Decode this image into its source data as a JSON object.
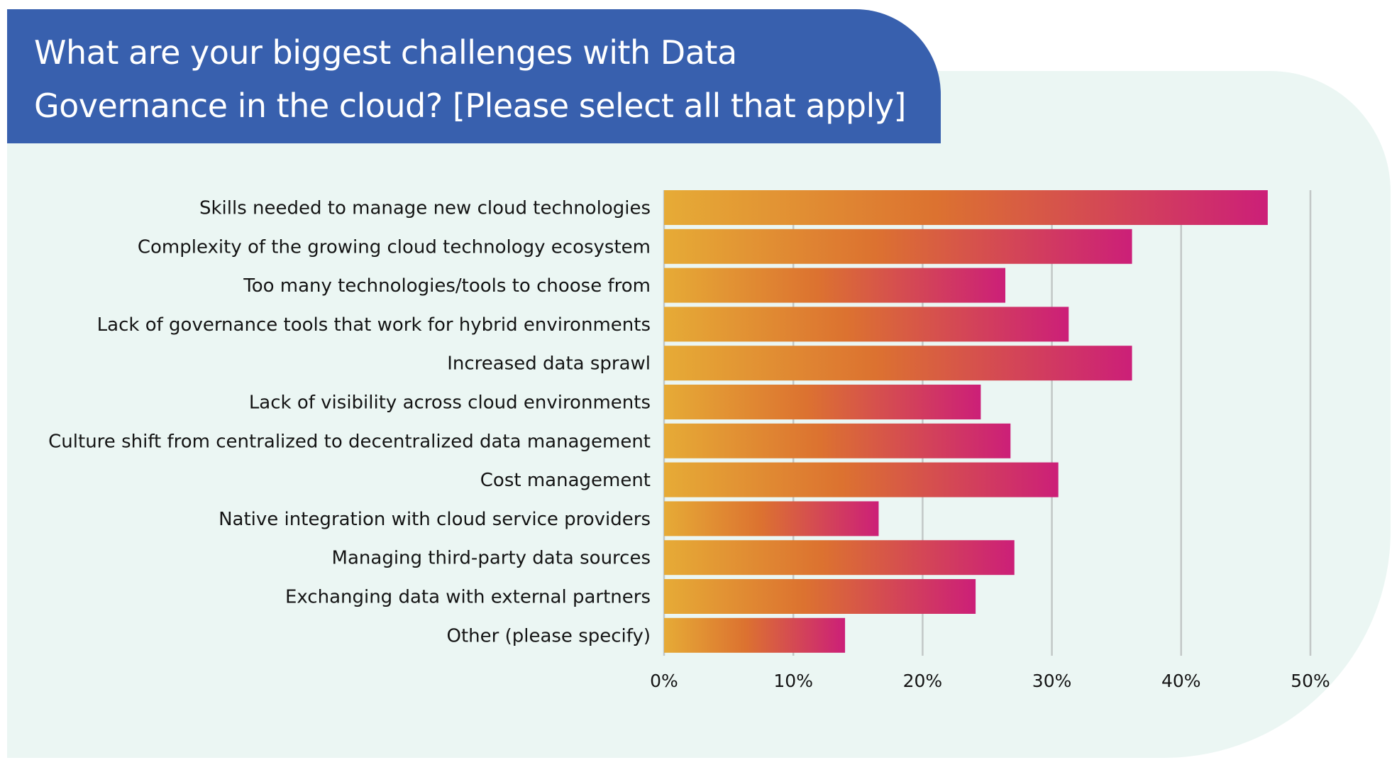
{
  "chart_data": {
    "type": "bar",
    "orientation": "horizontal",
    "title": "What are your biggest challenges with Data Governance in the cloud? [Please select all that apply]",
    "xlabel": "",
    "ylabel": "",
    "xlim": [
      0,
      50
    ],
    "grid": true,
    "categories": [
      "Skills needed to manage new cloud technologies",
      "Complexity of the growing cloud technology ecosystem",
      "Too many technologies/tools to choose from",
      "Lack of governance tools that work for hybrid environments",
      "Increased data sprawl",
      "Lack of visibility across cloud environments",
      "Culture shift from centralized to decentralized data management",
      "Cost management",
      "Native integration with cloud service providers",
      "Managing third-party data sources",
      "Exchanging data with external partners",
      "Other (please specify)"
    ],
    "values": [
      46.7,
      36.2,
      26.4,
      31.3,
      36.2,
      24.5,
      26.8,
      30.5,
      16.6,
      27.1,
      24.1,
      14.0
    ],
    "ticks": [
      0,
      10,
      20,
      30,
      40,
      50
    ],
    "tick_labels": [
      "0%",
      "10%",
      "20%",
      "30%",
      "40%",
      "50%"
    ],
    "colors": {
      "bar_start": "#e6ab36",
      "bar_mid": "#dc7230",
      "bar_end": "#cc1f78",
      "header_bg": "#3860ae",
      "panel_bg": "#ebf6f3"
    }
  }
}
